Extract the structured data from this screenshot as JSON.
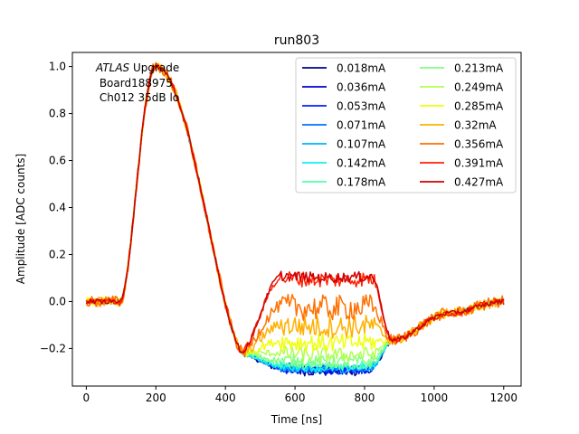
{
  "chart_data": {
    "type": "line",
    "title": "run803",
    "xlabel": "Time [ns]",
    "ylabel": "Amplitude [ADC counts]",
    "xlim": [
      -40,
      1250
    ],
    "ylim": [
      -0.36,
      1.06
    ],
    "xticks": [
      0,
      200,
      400,
      600,
      800,
      1000,
      1200
    ],
    "xtick_labels": [
      "0",
      "200",
      "400",
      "600",
      "800",
      "1000",
      "1200"
    ],
    "yticks": [
      -0.2,
      0.0,
      0.2,
      0.4,
      0.6,
      0.8,
      1.0
    ],
    "ytick_labels": [
      "−0.2",
      "0.0",
      "0.2",
      "0.4",
      "0.6",
      "0.8",
      "1.0"
    ],
    "annotation": {
      "italic": "ATLAS",
      "line1_rest": " Upgrade",
      "line2": " Board188975",
      "line3": " Ch012 35dB lo"
    },
    "legend_position": "top-right",
    "series": [
      {
        "name": "0.018mA",
        "color": "#00008f",
        "plateau": -0.285,
        "noise": 0.012
      },
      {
        "name": "0.036mA",
        "color": "#0000d0",
        "plateau": -0.285,
        "noise": 0.008
      },
      {
        "name": "0.053mA",
        "color": "#0020ff",
        "plateau": -0.283,
        "noise": 0.008
      },
      {
        "name": "0.071mA",
        "color": "#0070ff",
        "plateau": -0.282,
        "noise": 0.008
      },
      {
        "name": "0.107mA",
        "color": "#00b0ff",
        "plateau": -0.28,
        "noise": 0.008
      },
      {
        "name": "0.142mA",
        "color": "#10f0f0",
        "plateau": -0.275,
        "noise": 0.008
      },
      {
        "name": "0.178mA",
        "color": "#50ffb0",
        "plateau": -0.265,
        "noise": 0.009
      },
      {
        "name": "0.213mA",
        "color": "#80ff80",
        "plateau": -0.25,
        "noise": 0.012
      },
      {
        "name": "0.249mA",
        "color": "#b0ff50",
        "plateau": -0.22,
        "noise": 0.014
      },
      {
        "name": "0.285mA",
        "color": "#f0ff10",
        "plateau": -0.17,
        "noise": 0.018
      },
      {
        "name": "0.32mA",
        "color": "#ffb000",
        "plateau": -0.1,
        "noise": 0.022
      },
      {
        "name": "0.356mA",
        "color": "#ff7000",
        "plateau": -0.02,
        "noise": 0.025
      },
      {
        "name": "0.391mA",
        "color": "#ff2000",
        "plateau": 0.1,
        "noise": 0.015
      },
      {
        "name": "0.427mA",
        "color": "#d00000",
        "plateau": 0.11,
        "noise": 0.01
      }
    ]
  }
}
